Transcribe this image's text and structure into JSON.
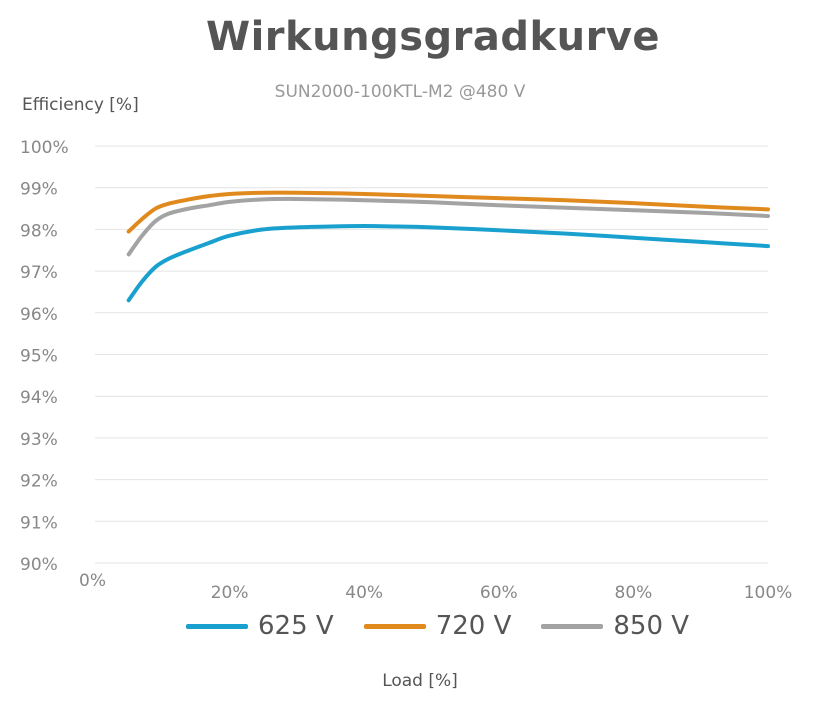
{
  "chart_data": {
    "type": "line",
    "title": "Wirkungsgradkurve",
    "subtitle": "SUN2000-100KTL-M2 @480 V",
    "xlabel": "Load [%]",
    "ylabel": "Efficiency [%]",
    "xlim": [
      0,
      100
    ],
    "ylim": [
      90,
      100
    ],
    "x_ticks": [
      "0%",
      "20%",
      "40%",
      "60%",
      "80%",
      "100%"
    ],
    "y_ticks": [
      "90%",
      "91%",
      "92%",
      "93%",
      "94%",
      "95%",
      "96%",
      "97%",
      "98%",
      "99%",
      "100%"
    ],
    "grid": true,
    "legend_position": "bottom",
    "series": [
      {
        "name": "625 V",
        "color": "#1aa0cf",
        "points": [
          [
            5,
            96.3
          ],
          [
            7,
            96.75
          ],
          [
            9,
            97.1
          ],
          [
            11,
            97.3
          ],
          [
            14,
            97.5
          ],
          [
            17,
            97.68
          ],
          [
            20,
            97.85
          ],
          [
            25,
            98.0
          ],
          [
            30,
            98.05
          ],
          [
            35,
            98.07
          ],
          [
            40,
            98.08
          ],
          [
            45,
            98.07
          ],
          [
            50,
            98.05
          ],
          [
            60,
            97.98
          ],
          [
            70,
            97.9
          ],
          [
            80,
            97.8
          ],
          [
            90,
            97.7
          ],
          [
            100,
            97.6
          ]
        ]
      },
      {
        "name": "720 V",
        "color": "#e08a1e",
        "points": [
          [
            5,
            97.95
          ],
          [
            7,
            98.25
          ],
          [
            9,
            98.5
          ],
          [
            11,
            98.62
          ],
          [
            14,
            98.72
          ],
          [
            17,
            98.8
          ],
          [
            20,
            98.85
          ],
          [
            25,
            98.88
          ],
          [
            30,
            98.88
          ],
          [
            40,
            98.85
          ],
          [
            50,
            98.8
          ],
          [
            60,
            98.75
          ],
          [
            70,
            98.7
          ],
          [
            80,
            98.63
          ],
          [
            90,
            98.55
          ],
          [
            100,
            98.48
          ]
        ]
      },
      {
        "name": "850 V",
        "color": "#a3a3a3",
        "points": [
          [
            5,
            97.4
          ],
          [
            7,
            97.85
          ],
          [
            9,
            98.2
          ],
          [
            11,
            98.38
          ],
          [
            14,
            98.5
          ],
          [
            17,
            98.58
          ],
          [
            20,
            98.66
          ],
          [
            25,
            98.72
          ],
          [
            30,
            98.73
          ],
          [
            40,
            98.7
          ],
          [
            50,
            98.65
          ],
          [
            60,
            98.58
          ],
          [
            70,
            98.52
          ],
          [
            80,
            98.46
          ],
          [
            90,
            98.4
          ],
          [
            100,
            98.32
          ]
        ]
      }
    ]
  }
}
